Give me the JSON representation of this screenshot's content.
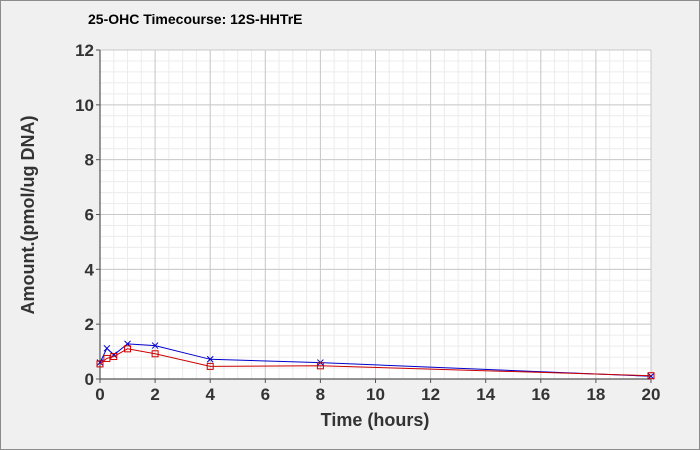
{
  "chart_data": {
    "type": "line",
    "title": "25-OHC Timecourse: 12S-HHTrE",
    "xlabel": "Time (hours)",
    "ylabel": "Amount.(pmol/ug DNA)",
    "xlim": [
      0,
      20
    ],
    "ylim": [
      0,
      12
    ],
    "x_ticks": [
      "0",
      "2",
      "4",
      "6",
      "8",
      "10",
      "12",
      "14",
      "16",
      "18",
      "20"
    ],
    "y_ticks": [
      "0",
      "2",
      "4",
      "6",
      "8",
      "10",
      "12"
    ],
    "grid": true,
    "legend": "none",
    "series": [
      {
        "color": "#0000cc",
        "marker": "x",
        "points": [
          {
            "x": 0,
            "y": 0.6
          },
          {
            "x": 0.25,
            "y": 1.12
          },
          {
            "x": 0.5,
            "y": 0.88
          },
          {
            "x": 1,
            "y": 1.28
          },
          {
            "x": 2,
            "y": 1.22
          },
          {
            "x": 4,
            "y": 0.72
          },
          {
            "x": 8,
            "y": 0.6
          },
          {
            "x": 20,
            "y": 0.1
          }
        ]
      },
      {
        "color": "#cc0000",
        "marker": "square",
        "points": [
          {
            "x": 0,
            "y": 0.55
          },
          {
            "x": 0.25,
            "y": 0.75
          },
          {
            "x": 0.5,
            "y": 0.82
          },
          {
            "x": 1,
            "y": 1.1
          },
          {
            "x": 2,
            "y": 0.92
          },
          {
            "x": 4,
            "y": 0.46
          },
          {
            "x": 8,
            "y": 0.48
          },
          {
            "x": 20,
            "y": 0.12
          }
        ]
      }
    ]
  }
}
